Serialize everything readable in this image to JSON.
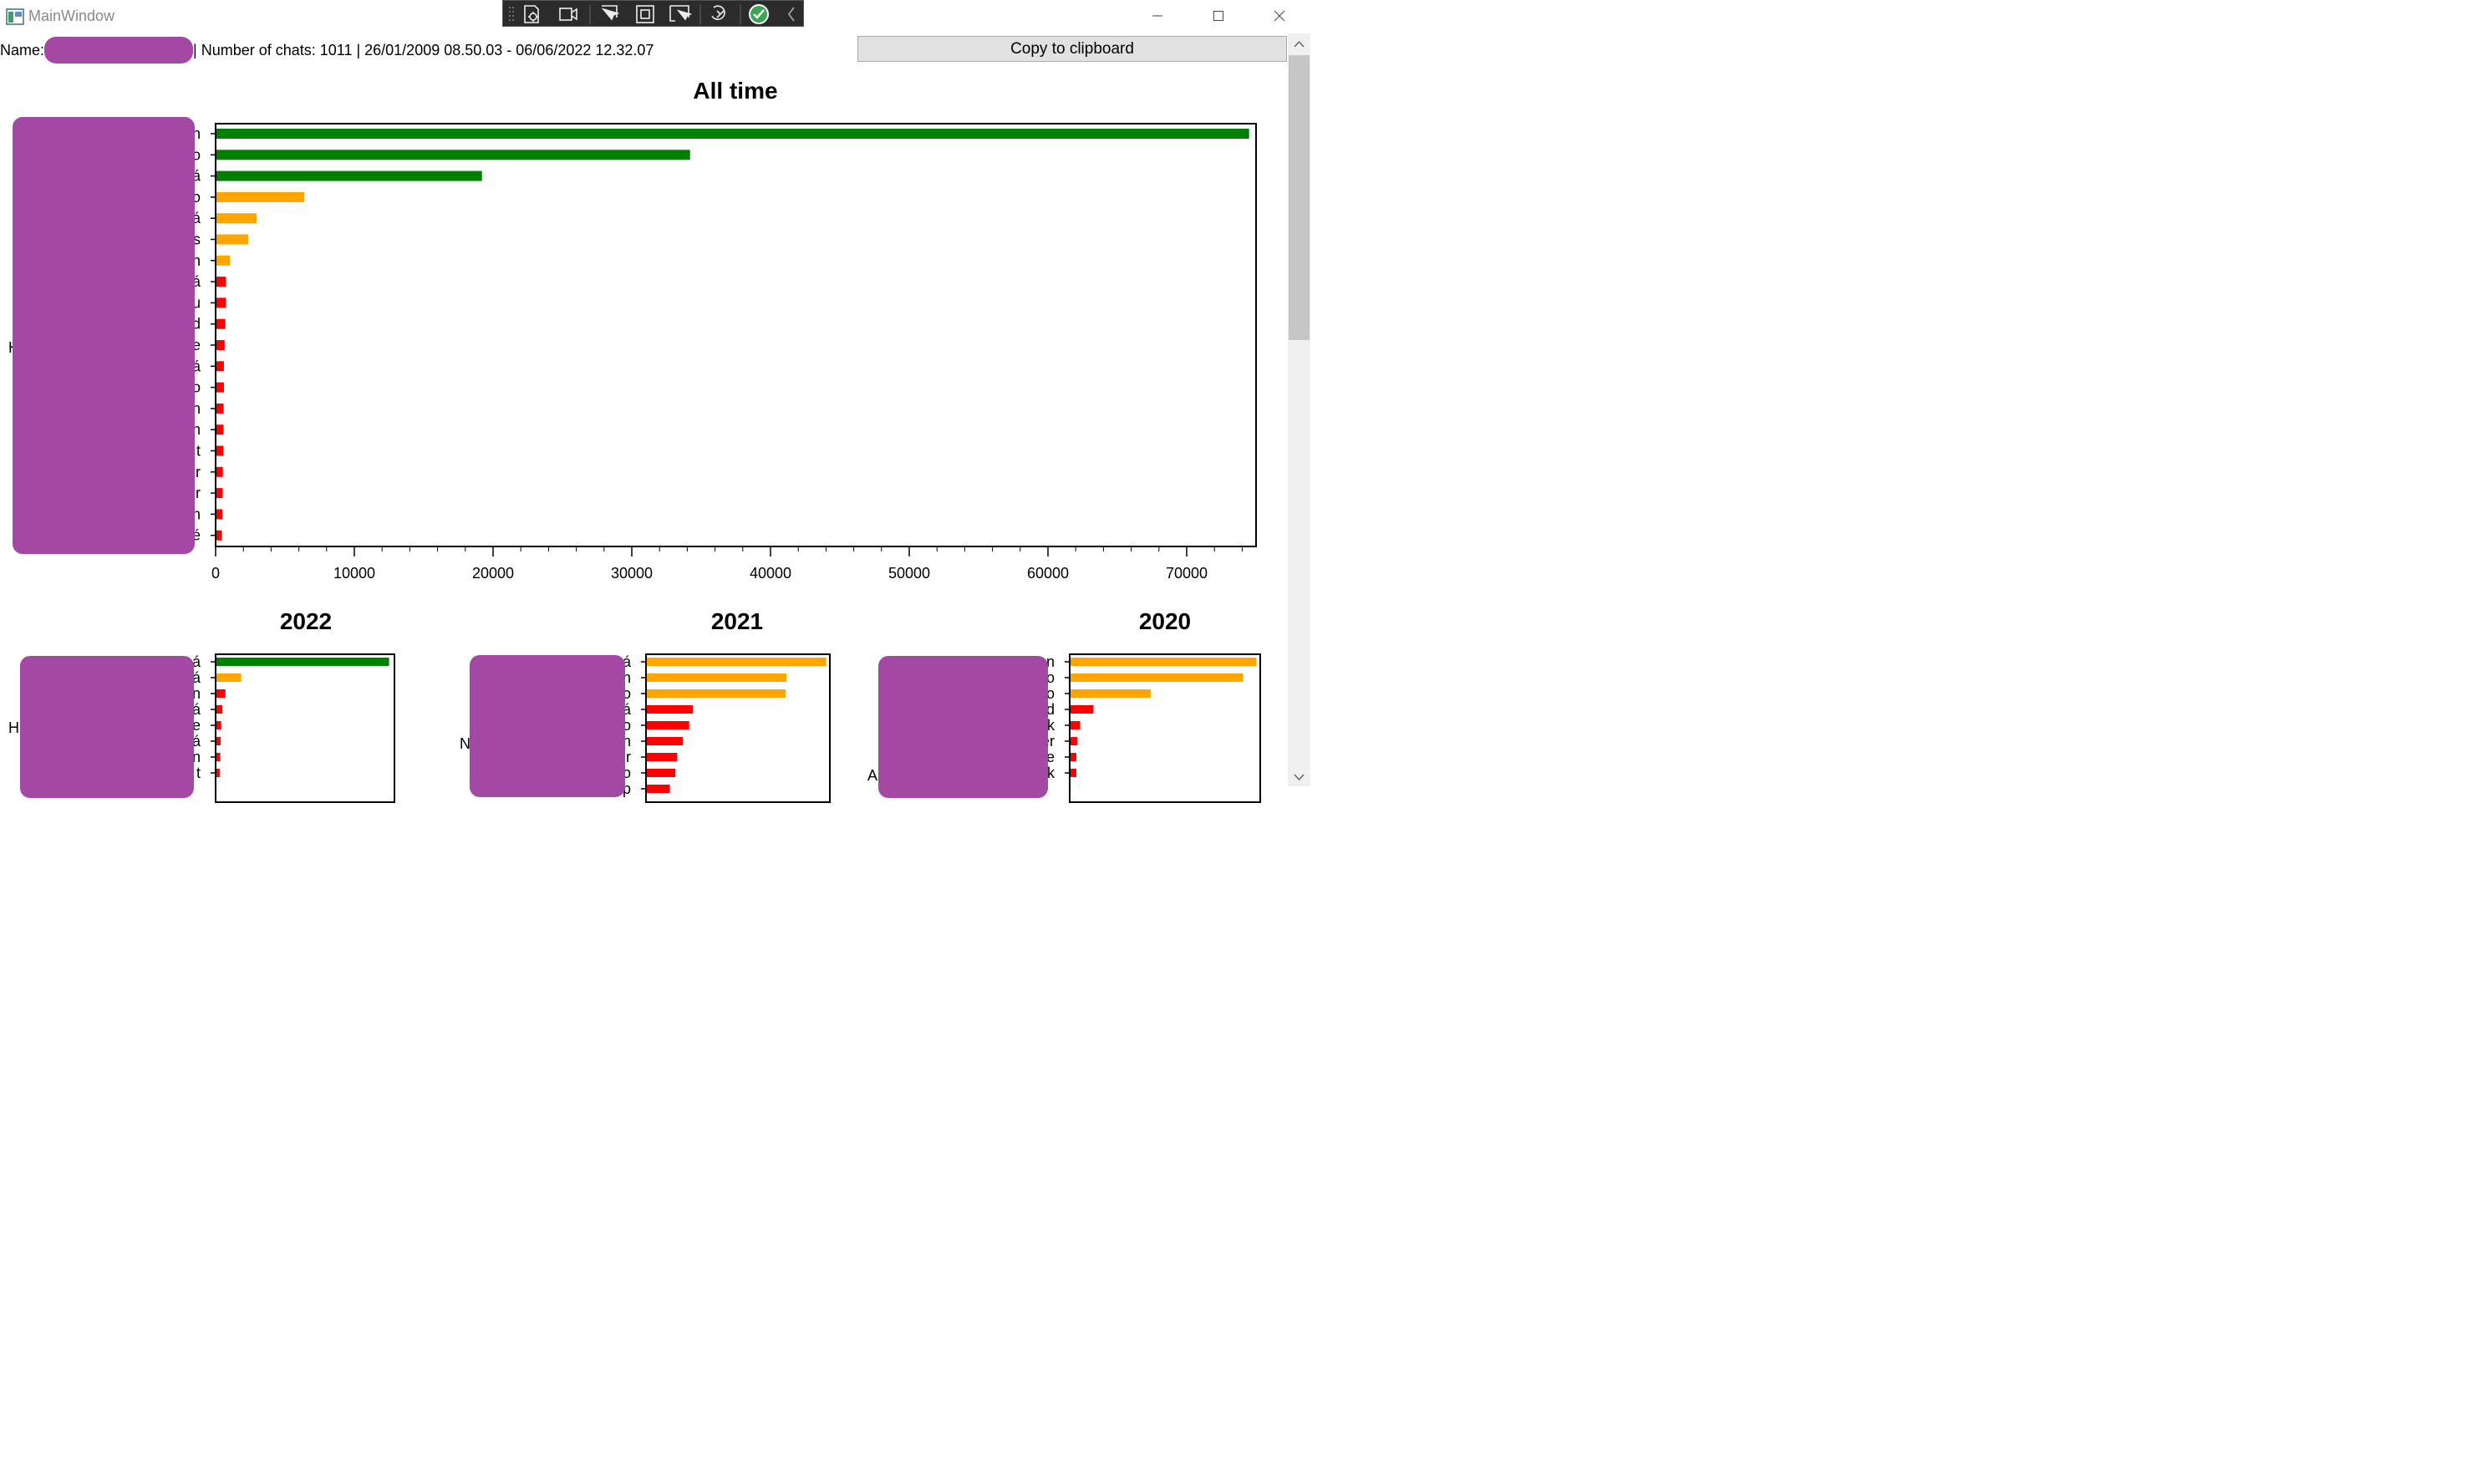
{
  "window": {
    "title": "MainWindow"
  },
  "header": {
    "name_label": "Name:",
    "summary": "| Number of chats: 1011 | 26/01/2009 08.50.03 - 06/06/2022 12.32.07"
  },
  "toolbar": {
    "copy_label": "Copy to clipboard"
  },
  "colors": {
    "green": "#008000",
    "orange": "#ffa500",
    "red": "#ff0000",
    "redaction": "#a349a4"
  },
  "chart_data": [
    {
      "type": "bar",
      "orientation": "horizontal",
      "title": "All time",
      "ylabel": "H",
      "categories": [
        "n",
        "o",
        "á",
        "o",
        "á",
        "s",
        "n",
        "á",
        "u",
        "d",
        "e",
        "á",
        "o",
        "n",
        "n",
        "t",
        "r",
        "r",
        "n",
        "é"
      ],
      "values": [
        74500,
        34200,
        19200,
        6400,
        2950,
        2350,
        1050,
        750,
        750,
        700,
        650,
        600,
        600,
        580,
        570,
        560,
        520,
        510,
        500,
        450
      ],
      "colors": [
        "green",
        "green",
        "green",
        "orange",
        "orange",
        "orange",
        "orange",
        "red",
        "red",
        "red",
        "red",
        "red",
        "red",
        "red",
        "red",
        "red",
        "red",
        "red",
        "red",
        "red"
      ],
      "xlim": [
        0,
        75000
      ],
      "xticks": [
        0,
        10000,
        20000,
        30000,
        40000,
        50000,
        60000,
        70000
      ],
      "xtick_labels": [
        "0",
        "10000",
        "20000",
        "30000",
        "40000",
        "50000",
        "60000",
        "70000"
      ]
    },
    {
      "type": "bar",
      "orientation": "horizontal",
      "title": "2022",
      "ylabel": "H",
      "categories": [
        "á",
        "á",
        "n",
        "á",
        "e",
        "á",
        "n",
        "t"
      ],
      "values": [
        9700,
        1430,
        550,
        380,
        310,
        280,
        260,
        230
      ],
      "colors": [
        "green",
        "orange",
        "red",
        "red",
        "red",
        "red",
        "red",
        "red"
      ],
      "xlim": [
        0,
        10000
      ]
    },
    {
      "type": "bar",
      "orientation": "horizontal",
      "title": "2021",
      "ylabel": "N",
      "categories": [
        "á",
        "n",
        "o",
        "á",
        "o",
        "n",
        "r",
        "o",
        "p"
      ],
      "values": [
        9800,
        7650,
        7600,
        2550,
        2350,
        2000,
        1700,
        1600,
        1300
      ],
      "colors": [
        "orange",
        "orange",
        "orange",
        "red",
        "red",
        "red",
        "red",
        "red",
        "red"
      ],
      "xlim": [
        0,
        10000
      ]
    },
    {
      "type": "bar",
      "orientation": "horizontal",
      "title": "2020",
      "ylabel": "A",
      "categories": [
        "n",
        "o",
        "o",
        "d",
        "k",
        "er",
        "e",
        "k"
      ],
      "values": [
        9800,
        9100,
        4250,
        1250,
        550,
        400,
        350,
        350
      ],
      "colors": [
        "orange",
        "orange",
        "orange",
        "red",
        "red",
        "red",
        "red",
        "red"
      ],
      "xlim": [
        0,
        10000
      ]
    }
  ]
}
